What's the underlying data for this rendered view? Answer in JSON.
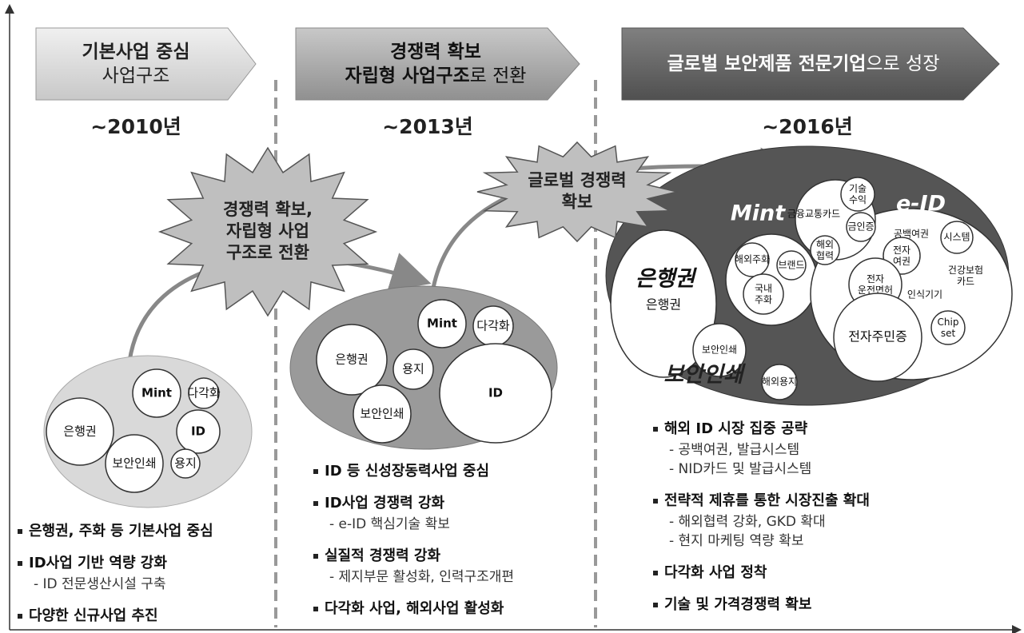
{
  "stages": [
    {
      "banner": [
        [
          {
            "text": "기본사업 중심",
            "bold": true
          }
        ],
        [
          {
            "text": "사업구조",
            "bold": false
          }
        ]
      ],
      "year": "~2010년",
      "circles": [
        "은행권",
        "Mint",
        "다각화",
        "ID",
        "보안인쇄",
        "용지"
      ],
      "bullets": [
        {
          "text": "은행권, 주화 등 기본사업 중심",
          "sub": []
        },
        {
          "text": "ID사업 기반 역량 강화",
          "sub": [
            "- ID 전문생산시설 구축"
          ]
        },
        {
          "text": "다양한 신규사업 추진",
          "sub": []
        }
      ]
    },
    {
      "banner": [
        [
          {
            "text": "경쟁력 확보",
            "bold": true
          }
        ],
        [
          {
            "text": "자립형 사업구조",
            "bold": true
          },
          {
            "text": "로 전환",
            "bold": false
          }
        ]
      ],
      "year": "~2013년",
      "circles": [
        "은행권",
        "Mint",
        "다각화",
        "용지",
        "ID",
        "보안인쇄"
      ],
      "bullets": [
        {
          "text": "ID 등 신성장동력사업 중심",
          "sub": []
        },
        {
          "text": "ID사업 경쟁력 강화",
          "sub": [
            "- e-ID 핵심기술 확보"
          ]
        },
        {
          "text": "실질적 경쟁력 강화",
          "sub": [
            "- 제지부문 활성화, 인력구조개편"
          ]
        },
        {
          "text": "다각화 사업, 해외사업 활성화",
          "sub": []
        }
      ]
    },
    {
      "banner": [
        [
          {
            "text": "글로벌 보안제품 전문기업",
            "bold": true
          },
          {
            "text": "으로 성장",
            "bold": false
          }
        ]
      ],
      "year": "~2016년",
      "groups": [
        "은행권",
        "Mint",
        "e-ID",
        "보안인쇄"
      ],
      "circles": [
        "은행권",
        "해외주화",
        "브랜드",
        "국내\n주화",
        "금융교통카드",
        "기술\n수익",
        "금인증",
        "해외\n협력",
        "공백여권",
        "시스템",
        "전자\n여권",
        "건강보험\n카드",
        "전자\n운전면허",
        "인식기기",
        "Chip\nset",
        "전자주민증",
        "보안인쇄",
        "해외용지"
      ],
      "bullets": [
        {
          "text": "해외 ID 시장 집중 공략",
          "sub": [
            "- 공백여권, 발급시스템",
            "- NID카드 및 발급시스템"
          ]
        },
        {
          "text": "전략적 제휴를 통한 시장진출 확대",
          "sub": [
            "- 해외협력 강화, GKD 확대",
            "- 현지 마케팅 역량 확보"
          ]
        },
        {
          "text": "다각화 사업 정착",
          "sub": []
        },
        {
          "text": "기술 및 가격경쟁력 확보",
          "sub": []
        }
      ]
    }
  ],
  "bursts": [
    [
      "경쟁력 확보,",
      "자립형 사업",
      "구조로 전환"
    ],
    [
      "글로벌 경쟁력",
      "확보"
    ]
  ]
}
